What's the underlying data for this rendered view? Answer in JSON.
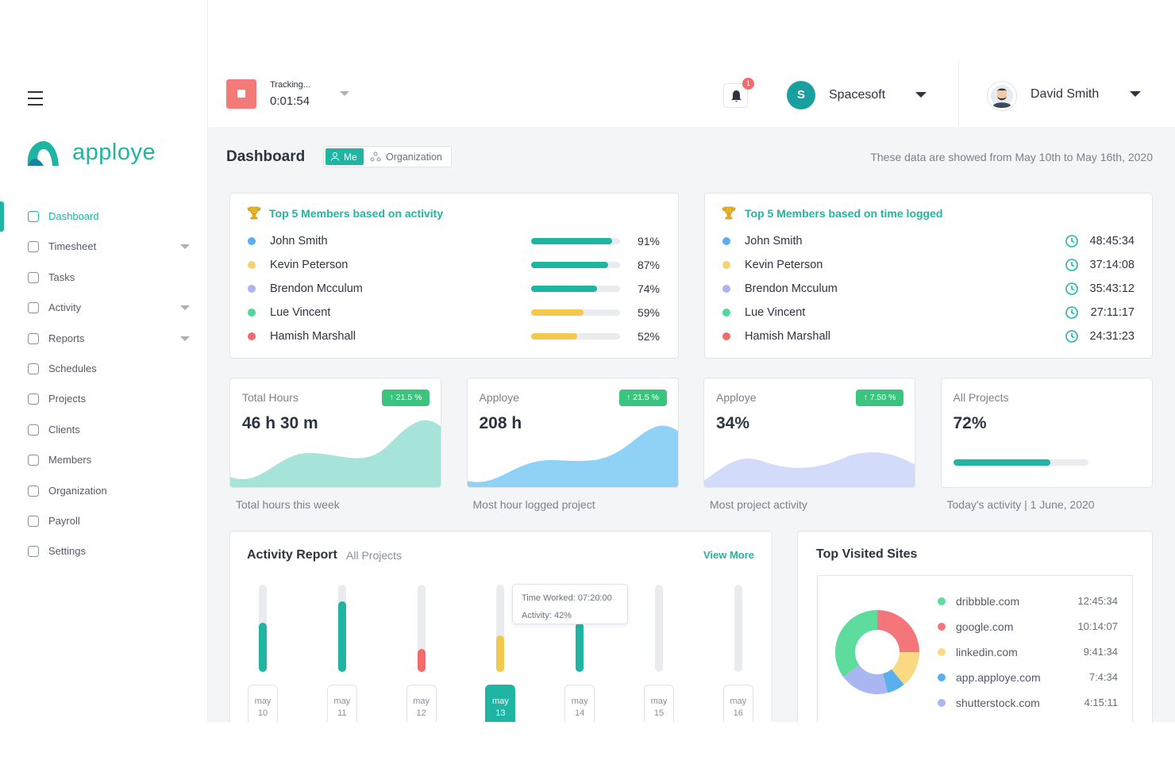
{
  "brand": "apploye",
  "header": {
    "tracking_label": "Tracking...",
    "timer": "0:01:54",
    "notification_count": "1",
    "org_initial": "S",
    "org_name": "Spacesoft",
    "user_name": "David Smith"
  },
  "nav": {
    "items": [
      "Dashboard",
      "Timesheet",
      "Tasks",
      "Activity",
      "Reports",
      "Schedules",
      "Projects",
      "Clients",
      "Members",
      "Organization",
      "Payroll",
      "Settings"
    ],
    "active": 0,
    "dropdowns": [
      1,
      3,
      4
    ]
  },
  "page": {
    "title": "Dashboard",
    "toggle": [
      "Me",
      "Organization"
    ],
    "date_range": "These data are showed from May 10th to May 16th, 2020"
  },
  "activity_card": {
    "title": "Top 5 Members based on activity",
    "names": [
      "John Smith",
      "Kevin Peterson",
      "Brendon Mcculum",
      "Lue Vincent",
      "Hamish Marshall"
    ],
    "colors": [
      "#5aafef",
      "#f5d372",
      "#a9b4f0",
      "#4fd69c",
      "#f26b6b"
    ],
    "values": [
      91,
      87,
      74,
      59,
      52
    ],
    "value_labels": [
      "91%",
      "87%",
      "74%",
      "59%",
      "52%"
    ],
    "bar_colors": [
      "#1fb5a2",
      "#1fb5a2",
      "#1fb5a2",
      "#f2c94c",
      "#f2c94c"
    ]
  },
  "time_card": {
    "title": "Top 5 Members based on time logged",
    "names": [
      "John Smith",
      "Kevin Peterson",
      "Brendon Mcculum",
      "Lue Vincent",
      "Hamish Marshall"
    ],
    "colors": [
      "#5aafef",
      "#f5d372",
      "#a9b4f0",
      "#4fd69c",
      "#f26b6b"
    ],
    "times": [
      "48:45:34",
      "37:14:08",
      "35:43:12",
      "27:11:17",
      "24:31:23"
    ]
  },
  "stats": [
    {
      "label": "Total Hours",
      "value": "46 h 30 m",
      "badge": "↑ 21.5 %",
      "caption": "Total hours this week"
    },
    {
      "label": "Apploye",
      "value": "208 h",
      "badge": "↑ 21.5 %",
      "caption": "Most hour logged project"
    },
    {
      "label": "Apploye",
      "value": "34%",
      "badge": "↑ 7.50 %",
      "caption": "Most project activity"
    },
    {
      "label": "All Projects",
      "value": "72%",
      "progress": 72,
      "caption": "Today's activity | 1 June, 2020"
    }
  ],
  "activity_report": {
    "title": "Activity Report",
    "filter": "All Projects",
    "link": "View More",
    "months": [
      "may",
      "may",
      "may",
      "may",
      "may",
      "may",
      "may"
    ],
    "days": [
      "10",
      "11",
      "12",
      "13",
      "14",
      "15",
      "16"
    ],
    "values": [
      56,
      81,
      26,
      42,
      56,
      0,
      0
    ],
    "colors": [
      "#1fb5a2",
      "#1fb5a2",
      "#f26b6b",
      "#f2c94c",
      "#1fb5a2",
      "#1fb5a2",
      "#1fb5a2"
    ],
    "selected": 3,
    "tooltip": {
      "time": "Time Worked: 07:20:00",
      "activity": "Activity: 42%"
    }
  },
  "top_sites": {
    "title": "Top Visited Sites",
    "sites": [
      "dribbble.com",
      "google.com",
      "linkedin.com",
      "app.apploye.com",
      "shutterstock.com"
    ],
    "times": [
      "12:45:34",
      "10:14:07",
      "9:41:34",
      "7:4:34",
      "4:15:11"
    ],
    "colors": [
      "#5ddc9e",
      "#f5767a",
      "#f9d982",
      "#5aafef",
      "#aab6f2"
    ],
    "shares": [
      35,
      25,
      14,
      7,
      19
    ]
  }
}
